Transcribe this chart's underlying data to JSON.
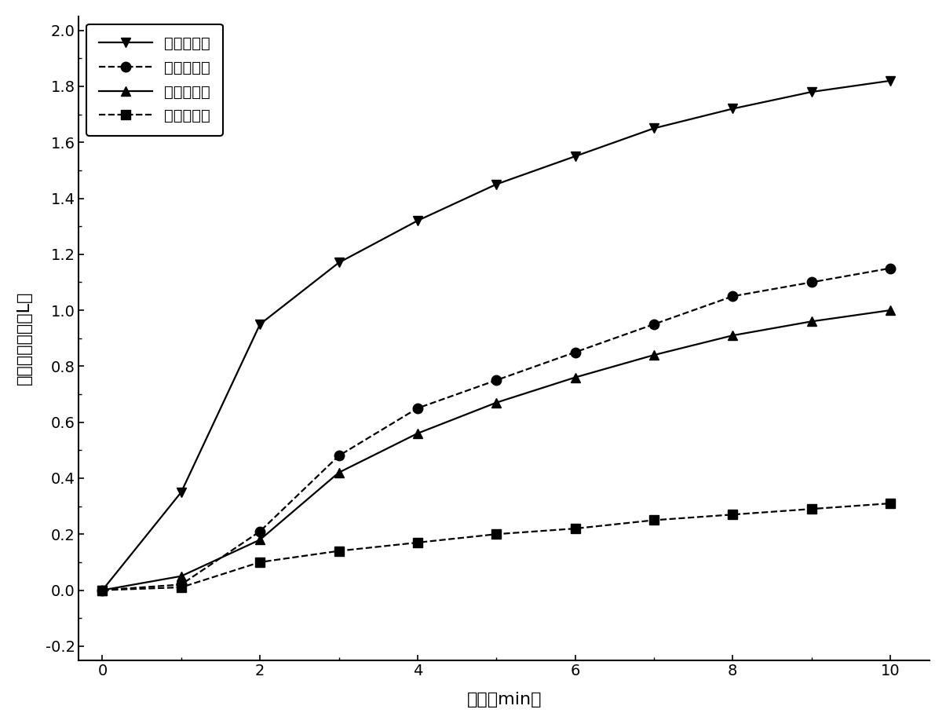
{
  "xlabel": "时间（min）",
  "ylabel": "氧气发生体积（L）",
  "xlim": [
    -0.3,
    10.5
  ],
  "ylim": [
    -0.25,
    2.05
  ],
  "xticks": [
    0,
    2,
    4,
    6,
    8,
    10
  ],
  "yticks": [
    -0.2,
    0.0,
    0.2,
    0.4,
    0.6,
    0.8,
    1.0,
    1.2,
    1.4,
    1.6,
    1.8,
    2.0
  ],
  "ytick_labels": [
    "-0.2",
    "0.0",
    "0.2",
    "0.4",
    "0.6",
    "0.8",
    "1.0",
    "1.2",
    "1.4",
    "1.6",
    "1.8",
    "2.0"
  ],
  "series": [
    {
      "label": "四次銀担载",
      "linestyle": "-",
      "marker": "v",
      "x": [
        0,
        1,
        2,
        3,
        4,
        5,
        6,
        7,
        8,
        9,
        10
      ],
      "y": [
        0.0,
        0.35,
        0.95,
        1.17,
        1.32,
        1.45,
        1.55,
        1.65,
        1.72,
        1.78,
        1.82
      ]
    },
    {
      "label": "三次銀担载",
      "linestyle": "--",
      "marker": "o",
      "x": [
        0,
        1,
        2,
        3,
        4,
        5,
        6,
        7,
        8,
        9,
        10
      ],
      "y": [
        0.0,
        0.02,
        0.21,
        0.48,
        0.65,
        0.75,
        0.85,
        0.95,
        1.05,
        1.1,
        1.15
      ]
    },
    {
      "label": "二次銀担载",
      "linestyle": "-",
      "marker": "^",
      "x": [
        0,
        1,
        2,
        3,
        4,
        5,
        6,
        7,
        8,
        9,
        10
      ],
      "y": [
        0.0,
        0.05,
        0.18,
        0.42,
        0.56,
        0.67,
        0.76,
        0.84,
        0.91,
        0.96,
        1.0
      ]
    },
    {
      "label": "一次銀担载",
      "linestyle": "--",
      "marker": "s",
      "x": [
        0,
        1,
        2,
        3,
        4,
        5,
        6,
        7,
        8,
        9,
        10
      ],
      "y": [
        0.0,
        0.01,
        0.1,
        0.14,
        0.17,
        0.2,
        0.22,
        0.25,
        0.27,
        0.29,
        0.31
      ]
    }
  ],
  "legend_loc": "upper left",
  "line_color": "#000000",
  "marker_size": 9,
  "linewidth": 1.6,
  "fig_width": 12.05,
  "fig_height": 9.22,
  "dpi": 100
}
